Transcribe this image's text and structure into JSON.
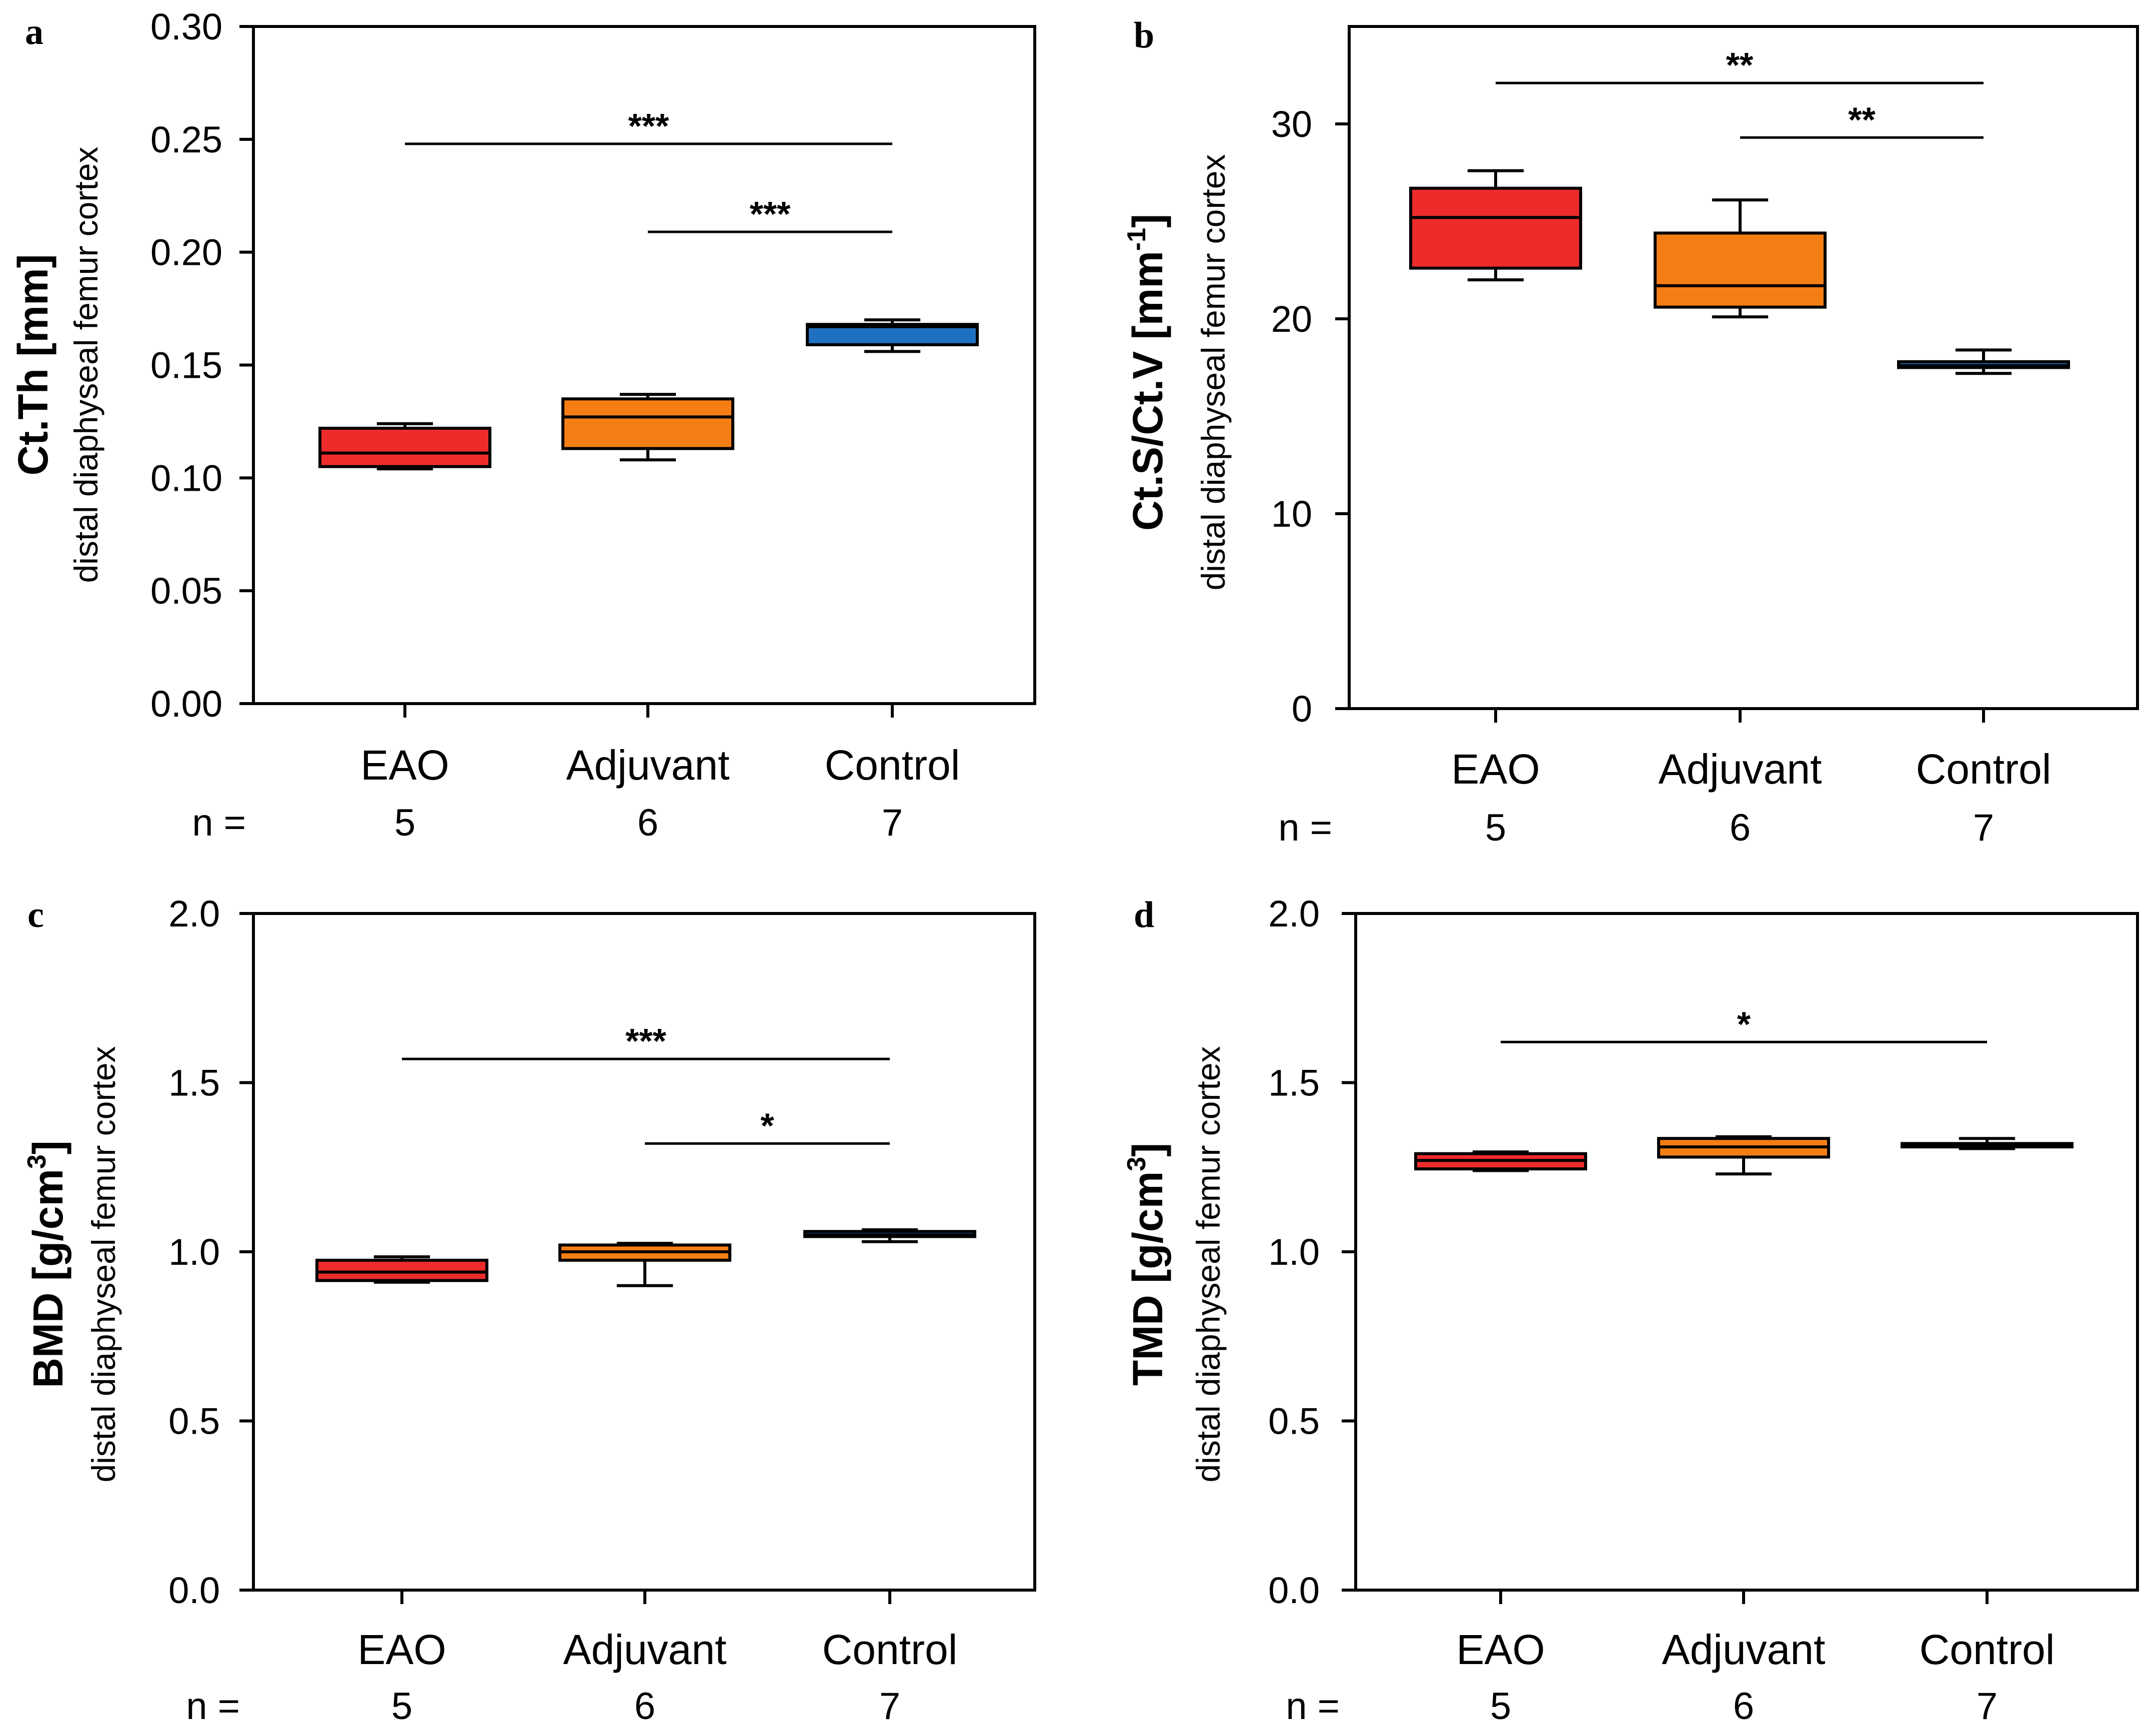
{
  "chart_data": [
    {
      "panel": "a",
      "type": "box",
      "categories": [
        "EAO",
        "Adjuvant",
        "Control"
      ],
      "n_label": "n =",
      "n_values": [
        "5",
        "6",
        "7"
      ],
      "ylabel": "Ct.Th [mm]",
      "ylabel_sub": "distal diaphyseal femur cortex",
      "ylim": [
        0,
        0.3
      ],
      "yticks": [
        0,
        0.05,
        0.1,
        0.15,
        0.2,
        0.25,
        0.3
      ],
      "ytick_labels": [
        "0.00",
        "0.05",
        "0.10",
        "0.15",
        "0.20",
        "0.25",
        "0.30"
      ],
      "grid": false,
      "boxes": [
        {
          "min": 0.104,
          "q1": 0.105,
          "median": 0.111,
          "q3": 0.122,
          "max": 0.124,
          "color": "#ee2b2b"
        },
        {
          "min": 0.108,
          "q1": 0.113,
          "median": 0.127,
          "q3": 0.135,
          "max": 0.137,
          "color": "#f57e14"
        },
        {
          "min": 0.156,
          "q1": 0.159,
          "median": 0.167,
          "q3": 0.168,
          "max": 0.17,
          "color": "#1f70c1"
        }
      ],
      "significance": [
        {
          "from": 0,
          "to": 2,
          "y": 0.248,
          "label": "***"
        },
        {
          "from": 1,
          "to": 2,
          "y": 0.209,
          "label": "***"
        }
      ]
    },
    {
      "panel": "b",
      "type": "box",
      "categories": [
        "EAO",
        "Adjuvant",
        "Control"
      ],
      "n_label": "n =",
      "n_values": [
        "5",
        "6",
        "7"
      ],
      "ylabel": "Ct.S/Ct.V [mm",
      "ylabel_sup": "-1",
      "ylabel_end": "]",
      "ylabel_sub": "distal diaphyseal femur cortex",
      "ylim": [
        0,
        35
      ],
      "yticks": [
        0,
        10,
        20,
        30
      ],
      "ytick_labels": [
        "0",
        "10",
        "20",
        "30"
      ],
      "grid": false,
      "boxes": [
        {
          "min": 22.0,
          "q1": 22.6,
          "median": 25.2,
          "q3": 26.7,
          "max": 27.6,
          "color": "#ee2b2b"
        },
        {
          "min": 20.1,
          "q1": 20.6,
          "median": 21.7,
          "q3": 24.4,
          "max": 26.1,
          "color": "#f57e14"
        },
        {
          "min": 17.2,
          "q1": 17.5,
          "median": 17.6,
          "q3": 17.8,
          "max": 18.4,
          "color": "#1f70c1"
        }
      ],
      "significance": [
        {
          "from": 0,
          "to": 2,
          "y": 32.1,
          "label": "**"
        },
        {
          "from": 1,
          "to": 2,
          "y": 29.3,
          "label": "**"
        }
      ]
    },
    {
      "panel": "c",
      "type": "box",
      "categories": [
        "EAO",
        "Adjuvant",
        "Control"
      ],
      "n_label": "n =",
      "n_values": [
        "5",
        "6",
        "7"
      ],
      "ylabel": "BMD [g/cm",
      "ylabel_sup": "3",
      "ylabel_end": "]",
      "ylabel_sub": "distal diaphyseal femur cortex",
      "ylim": [
        0,
        2
      ],
      "yticks": [
        0,
        0.5,
        1,
        1.5,
        2
      ],
      "ytick_labels": [
        "0.0",
        "0.5",
        "1.0",
        "1.5",
        "2.0"
      ],
      "grid": false,
      "boxes": [
        {
          "min": 0.91,
          "q1": 0.915,
          "median": 0.94,
          "q3": 0.975,
          "max": 0.985,
          "color": "#ee2b2b"
        },
        {
          "min": 0.9,
          "q1": 0.975,
          "median": 1.0,
          "q3": 1.02,
          "max": 1.025,
          "color": "#f57e14"
        },
        {
          "min": 1.03,
          "q1": 1.045,
          "median": 1.05,
          "q3": 1.06,
          "max": 1.065,
          "color": "#1f70c1"
        }
      ],
      "significance": [
        {
          "from": 0,
          "to": 2,
          "y": 1.57,
          "label": "***"
        },
        {
          "from": 1,
          "to": 2,
          "y": 1.32,
          "label": "*"
        }
      ]
    },
    {
      "panel": "d",
      "type": "box",
      "categories": [
        "EAO",
        "Adjuvant",
        "Control"
      ],
      "n_label": "n =",
      "n_values": [
        "5",
        "6",
        "7"
      ],
      "ylabel": "TMD [g/cm",
      "ylabel_sup": "3",
      "ylabel_end": "]",
      "ylabel_sub": "distal diaphyseal femur cortex",
      "ylim": [
        0,
        2
      ],
      "yticks": [
        0,
        0.5,
        1,
        1.5,
        2
      ],
      "ytick_labels": [
        "0.0",
        "0.5",
        "1.0",
        "1.5",
        "2.0"
      ],
      "grid": false,
      "boxes": [
        {
          "min": 1.24,
          "q1": 1.245,
          "median": 1.27,
          "q3": 1.29,
          "max": 1.295,
          "color": "#ee2b2b"
        },
        {
          "min": 1.23,
          "q1": 1.28,
          "median": 1.31,
          "q3": 1.335,
          "max": 1.34,
          "color": "#f57e14"
        },
        {
          "min": 1.305,
          "q1": 1.31,
          "median": 1.315,
          "q3": 1.32,
          "max": 1.335,
          "color": "#1f70c1"
        }
      ],
      "significance": [
        {
          "from": 0,
          "to": 2,
          "y": 1.62,
          "label": "*"
        }
      ]
    }
  ]
}
